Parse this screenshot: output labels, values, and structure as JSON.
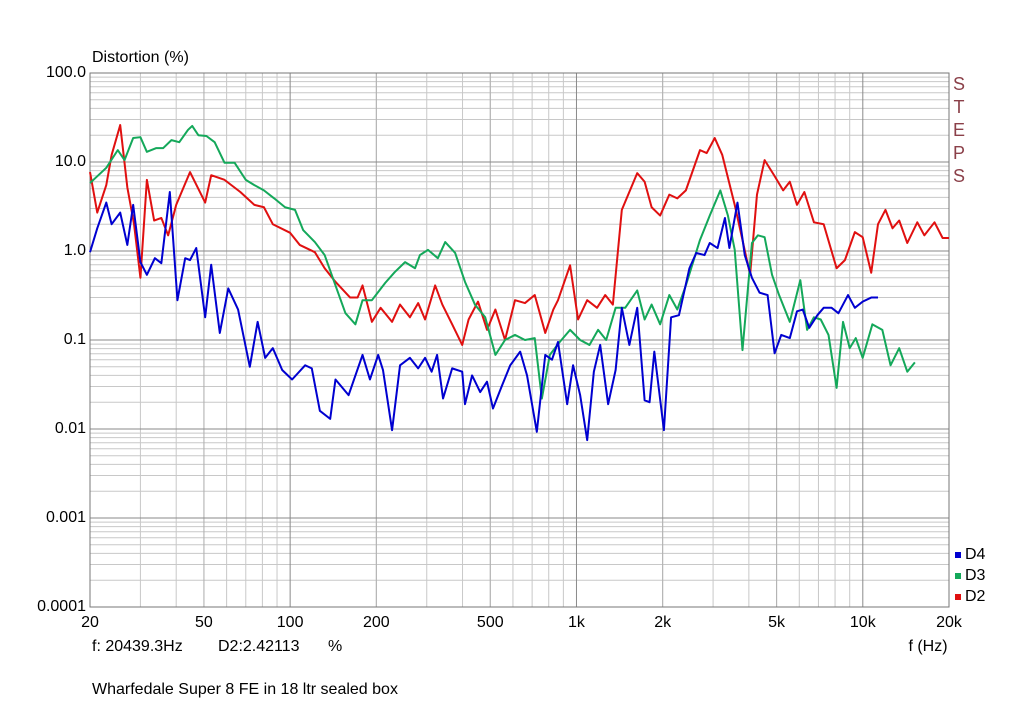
{
  "chart_data": {
    "type": "line",
    "title": "Distortion (%)",
    "subtitle": "Wharfedale Super 8 FE in 18 ltr sealed box",
    "x_label": "f (Hz)",
    "logo": "STEPS",
    "cursor_readout": [
      "f: 20439.3Hz",
      "D2:2.42113",
      "%"
    ],
    "xscale": "log",
    "yscale": "log",
    "grid": true,
    "minor_grid": true,
    "legend": "lower right",
    "xlim": [
      20,
      20000
    ],
    "ylim": [
      0.0001,
      100
    ],
    "xticks": [
      20,
      50,
      100,
      200,
      500,
      {
        "value": 1000,
        "label": "1k"
      },
      {
        "value": 2000,
        "label": "2k"
      },
      {
        "value": 5000,
        "label": "5k"
      },
      {
        "value": 10000,
        "label": "10k"
      },
      {
        "value": 20000,
        "label": "20k"
      }
    ],
    "yticks": [
      0.0001,
      0.001,
      0.01,
      0.1,
      {
        "value": 1,
        "label": "1.0"
      },
      {
        "value": 10,
        "label": "10.0"
      },
      {
        "value": 100,
        "label": "100.0"
      }
    ],
    "series": [
      {
        "name": "D4",
        "color": "#0000d0",
        "x": [
          20,
          21.2,
          22.8,
          23.8,
          25.5,
          27,
          28.3,
          30,
          31.6,
          33.7,
          35.5,
          38,
          40.4,
          43,
          44.7,
          47,
          50.5,
          53,
          56.8,
          60.8,
          65.8,
          72.3,
          77,
          81.8,
          87,
          93.8,
          101.6,
          112.8,
          119,
          127,
          138,
          144,
          160,
          179,
          190,
          203,
          211,
          227,
          242,
          262,
          280,
          296,
          312,
          326,
          342,
          368,
          399,
          408,
          432,
          461,
          487,
          511,
          550,
          587,
          636,
          672,
          727,
          778,
          821,
          862,
          928,
          973,
          1030,
          1090,
          1150,
          1210,
          1290,
          1370,
          1440,
          1530,
          1630,
          1730,
          1800,
          1870,
          2020,
          2140,
          2280,
          2480,
          2620,
          2800,
          2920,
          3110,
          3300,
          3420,
          3650,
          3870,
          4100,
          4360,
          4650,
          4920,
          5190,
          5560,
          5890,
          6170,
          6500,
          6940,
          7300,
          7780,
          8220,
          8880,
          9380,
          9990,
          10700,
          11300
        ],
        "values": [
          0.97,
          1.8,
          3.5,
          2,
          2.7,
          1.17,
          3.3,
          0.75,
          0.54,
          0.83,
          0.73,
          4.6,
          0.28,
          0.83,
          0.79,
          1.08,
          0.18,
          0.7,
          0.12,
          0.38,
          0.22,
          0.05,
          0.16,
          0.063,
          0.081,
          0.046,
          0.036,
          0.052,
          0.048,
          0.016,
          0.013,
          0.036,
          0.024,
          0.068,
          0.036,
          0.068,
          0.046,
          0.0097,
          0.052,
          0.063,
          0.048,
          0.063,
          0.044,
          0.068,
          0.022,
          0.048,
          0.044,
          0.019,
          0.04,
          0.026,
          0.034,
          0.017,
          0.031,
          0.052,
          0.074,
          0.04,
          0.0093,
          0.068,
          0.06,
          0.095,
          0.019,
          0.052,
          0.024,
          0.0075,
          0.044,
          0.088,
          0.019,
          0.046,
          0.23,
          0.088,
          0.23,
          0.021,
          0.02,
          0.074,
          0.0097,
          0.18,
          0.19,
          0.64,
          0.95,
          0.9,
          1.23,
          1.08,
          2.35,
          1.08,
          3.5,
          0.9,
          0.5,
          0.34,
          0.32,
          0.071,
          0.114,
          0.105,
          0.21,
          0.22,
          0.137,
          0.19,
          0.23,
          0.23,
          0.2,
          0.32,
          0.23,
          0.27,
          0.3,
          0.3
        ]
      },
      {
        "name": "D3",
        "color": "#14a85a",
        "x": [
          20,
          22.8,
          25,
          26.4,
          28.3,
          30,
          31.6,
          34,
          36,
          38.5,
          41,
          44,
          45.5,
          47.8,
          51,
          54.5,
          59,
          64,
          70,
          75,
          81,
          88,
          96,
          104,
          111,
          122,
          132,
          144,
          156,
          169,
          179,
          193,
          215,
          232,
          252,
          273,
          284,
          303,
          328,
          348,
          377,
          408,
          442,
          480,
          521,
          563,
          610,
          661,
          715,
          757,
          807,
          874,
          950,
          1030,
          1110,
          1190,
          1270,
          1370,
          1480,
          1630,
          1730,
          1830,
          1960,
          2110,
          2250,
          2410,
          2700,
          2920,
          3180,
          3380,
          3570,
          3800,
          4100,
          4300,
          4540,
          4820,
          5100,
          5560,
          6050,
          6390,
          6750,
          7130,
          7590,
          8100,
          8530,
          9000,
          9450,
          9990,
          10800,
          11700,
          12500,
          13400,
          14300,
          15200
        ],
        "values": [
          5.8,
          8.6,
          13.6,
          10.5,
          18.6,
          19,
          13,
          14.3,
          14.3,
          17.6,
          16.7,
          23,
          25.4,
          20,
          19.6,
          16.7,
          9.8,
          9.8,
          6.3,
          5.5,
          4.8,
          3.9,
          3.1,
          2.9,
          1.72,
          1.26,
          0.9,
          0.41,
          0.2,
          0.15,
          0.28,
          0.28,
          0.44,
          0.58,
          0.75,
          0.64,
          0.9,
          1.03,
          0.83,
          1.26,
          0.95,
          0.45,
          0.25,
          0.18,
          0.068,
          0.1,
          0.114,
          0.1,
          0.105,
          0.022,
          0.068,
          0.095,
          0.13,
          0.1,
          0.088,
          0.13,
          0.1,
          0.23,
          0.23,
          0.36,
          0.17,
          0.25,
          0.15,
          0.32,
          0.22,
          0.41,
          1.33,
          2.5,
          4.8,
          2.5,
          1.03,
          0.077,
          1.23,
          1.5,
          1.43,
          0.54,
          0.32,
          0.16,
          0.47,
          0.13,
          0.18,
          0.17,
          0.114,
          0.029,
          0.16,
          0.081,
          0.105,
          0.063,
          0.15,
          0.13,
          0.052,
          0.081,
          0.044,
          0.056
        ]
      },
      {
        "name": "D2",
        "color": "#e01010",
        "x": [
          20,
          21.2,
          22.8,
          23.8,
          25.5,
          27,
          28.5,
          30,
          31.6,
          33.5,
          35.5,
          37.5,
          40,
          44.7,
          50.5,
          53,
          59,
          67,
          75,
          81,
          87,
          100,
          108,
          122,
          132,
          144,
          162,
          172,
          179,
          193,
          207,
          227,
          242,
          262,
          280,
          296,
          321,
          340,
          368,
          399,
          420,
          453,
          487,
          521,
          563,
          610,
          661,
          715,
          778,
          830,
          862,
          950,
          1013,
          1090,
          1180,
          1260,
          1340,
          1440,
          1630,
          1730,
          1830,
          1960,
          2110,
          2250,
          2410,
          2700,
          2850,
          3040,
          3230,
          3570,
          3800,
          4040,
          4270,
          4540,
          4900,
          5270,
          5560,
          5890,
          6250,
          6750,
          7300,
          8100,
          8660,
          9380,
          9990,
          10700,
          11300,
          12000,
          12700,
          13400,
          14300,
          15500,
          16400,
          17800,
          19000,
          20000
        ],
        "values": [
          7.7,
          2.7,
          5.5,
          12,
          26,
          5.2,
          2,
          0.5,
          6.3,
          2.2,
          2.35,
          1.5,
          3.3,
          7.7,
          3.5,
          7.1,
          6.3,
          4.6,
          3.3,
          3.1,
          2,
          1.6,
          1.17,
          0.97,
          0.64,
          0.45,
          0.3,
          0.3,
          0.41,
          0.16,
          0.23,
          0.16,
          0.25,
          0.18,
          0.26,
          0.17,
          0.41,
          0.25,
          0.15,
          0.088,
          0.17,
          0.27,
          0.13,
          0.22,
          0.1,
          0.28,
          0.26,
          0.32,
          0.12,
          0.22,
          0.28,
          0.69,
          0.17,
          0.28,
          0.23,
          0.32,
          0.25,
          2.9,
          7.5,
          6,
          3.1,
          2.5,
          4.3,
          3.9,
          4.8,
          13.6,
          12.6,
          18.6,
          12,
          3.3,
          1.33,
          0.54,
          4.3,
          10.5,
          7.1,
          4.8,
          6,
          3.3,
          4.6,
          2.1,
          2,
          0.64,
          0.79,
          1.63,
          1.43,
          0.57,
          2,
          2.9,
          1.8,
          2.2,
          1.23,
          2.1,
          1.5,
          2.1,
          1.4,
          1.4
        ]
      }
    ]
  }
}
